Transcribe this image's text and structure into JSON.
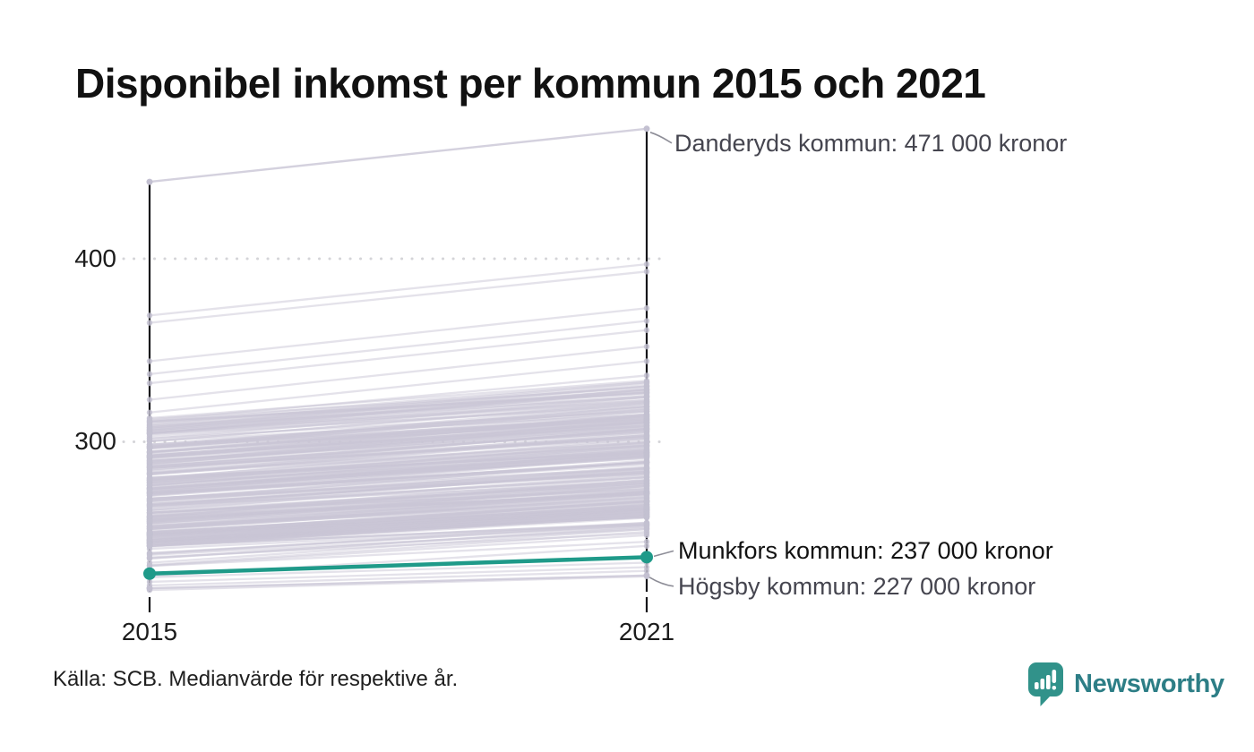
{
  "title": "Disponibel inkomst per kommun 2015 och 2021",
  "source": "Källa: SCB. Medianvärde för respektive år.",
  "logo": {
    "text": "Newsworthy",
    "icon": "newsworthy-bubble-barchart-icon",
    "color": "#2d7e86",
    "icon_color": "#31928a"
  },
  "chart_data": {
    "type": "line",
    "subtype": "slopegraph",
    "title": "Disponibel inkomst per kommun 2015 och 2021",
    "x": [
      2015,
      2021
    ],
    "x_labels": [
      "2015",
      "2021"
    ],
    "y_ticks": [
      {
        "value": 400,
        "label": "400"
      },
      {
        "value": 300,
        "label": "300"
      }
    ],
    "y_unit": "tusen kronor",
    "ylim": [
      210,
      480
    ],
    "grid": "dotted-horizontal",
    "highlight_color": "#1f9a89",
    "line_color": "#c9c6d6",
    "labeled_series": [
      {
        "name": "Danderyds kommun",
        "values": [
          442,
          471
        ],
        "label": "Danderyds kommun: 471 000 kronor",
        "highlight": false
      },
      {
        "name": "Munkfors kommun",
        "values": [
          228,
          237
        ],
        "label": "Munkfors kommun: 237 000 kronor",
        "highlight": true
      },
      {
        "name": "Högsby kommun",
        "values": [
          220,
          227
        ],
        "label": "Högsby kommun: 227 000 kronor",
        "highlight": false
      }
    ],
    "background": {
      "description": "Remaining Swedish municipalities, unlabeled gray slope lines (approx. 290 total)",
      "seed": 7,
      "explicit_pairs": [
        [
          369,
          397
        ],
        [
          365,
          393
        ],
        [
          344,
          373
        ],
        [
          337,
          366
        ],
        [
          332,
          361
        ],
        [
          323,
          352
        ],
        [
          316,
          344
        ],
        [
          226,
          234
        ],
        [
          223.5,
          231.5
        ],
        [
          221.5,
          229.5
        ],
        [
          219,
          226.5
        ]
      ],
      "groups": [
        {
          "count": 262,
          "min": 243,
          "range": 70,
          "skew": 1.35
        },
        {
          "count": 14,
          "min": 225,
          "range": 18,
          "skew": 1
        }
      ],
      "growth": {
        "min": 1.048,
        "spread": 0.032
      }
    }
  }
}
